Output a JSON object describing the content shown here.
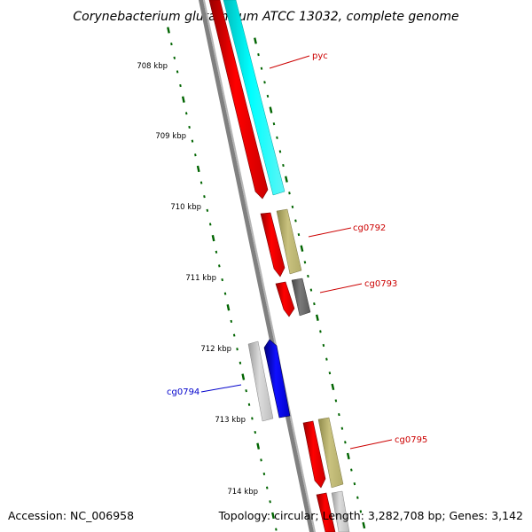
{
  "title": "Corynebacterium glutamicum ATCC 13032, complete genome",
  "accession": "Accession: NC_006958",
  "topology": "Topology: circular; Length: 3,282,708 bp; Genes: 3,142",
  "ruler_labels": [
    "708 kbp",
    "709 kbp",
    "710 kbp",
    "711 kbp",
    "712 kbp",
    "713 kbp",
    "714 kbp"
  ],
  "genes": [
    {
      "name": "pyc",
      "strand": "forward",
      "color": "#cc0000"
    },
    {
      "name": "cg0792",
      "strand": "forward",
      "color": "#cc0000"
    },
    {
      "name": "cg0793",
      "strand": "forward",
      "color": "#cc0000"
    },
    {
      "name": "cg0794",
      "strand": "reverse",
      "color": "#0000cc"
    },
    {
      "name": "cg0795",
      "strand": "forward",
      "color": "#cc0000"
    }
  ],
  "colors": {
    "cds_forward": "#ff0000",
    "cds_reverse": "#0000ff",
    "feature_cyan": "#00ffff",
    "feature_khaki": "#bdb76b",
    "feature_gray": "#666666",
    "feature_lightgray": "#c8c8c8",
    "backbone": "#808080",
    "ruler": "#006400"
  }
}
